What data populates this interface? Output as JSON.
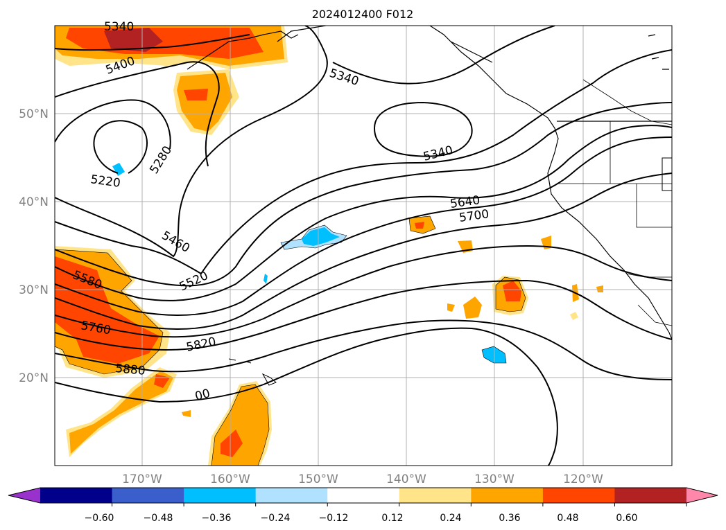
{
  "title": "2024012400 F012",
  "map": {
    "lat_labels": [
      "50°N",
      "40°N",
      "30°N",
      "20°N"
    ],
    "lon_labels": [
      "170°W",
      "160°W",
      "150°W",
      "140°W",
      "130°W",
      "120°W"
    ],
    "contour_labels": [
      "5340",
      "5400",
      "5280",
      "5220",
      "5340",
      "5340",
      "5460",
      "5520",
      "5580",
      "5640",
      "5700",
      "5760",
      "5820",
      "5880",
      "00"
    ],
    "gridlines": true
  },
  "colorbar": {
    "ticks": [
      "−0.60",
      "−0.48",
      "−0.36",
      "−0.24",
      "−0.12",
      "0.12",
      "0.24",
      "0.36",
      "0.48",
      "0.60"
    ],
    "colors": [
      "#9932cc",
      "#00008b",
      "#3a5fcd",
      "#00bfff",
      "#b0e2ff",
      "#ffffff",
      "#ffe48a",
      "#ffa500",
      "#ff4500",
      "#b22222",
      "#ff88aa"
    ]
  }
}
